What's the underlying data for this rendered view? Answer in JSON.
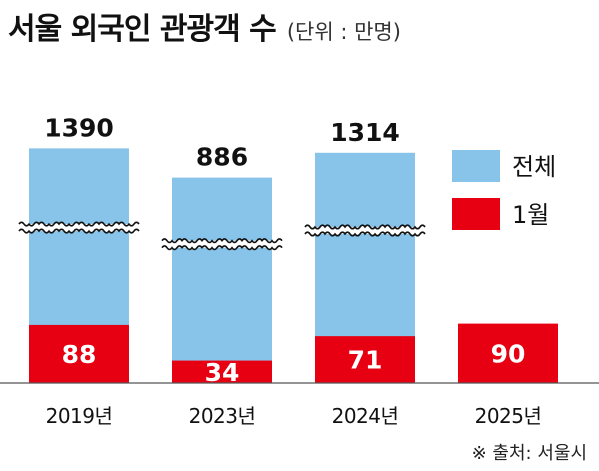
{
  "title": "서울 외국인 관광객 수",
  "unit": "(단위 : 만명)",
  "source": "※ 출처: 서울시",
  "chart_data": {
    "type": "bar",
    "categories": [
      "2019년",
      "2023년",
      "2024년",
      "2025년"
    ],
    "series": [
      {
        "name": "전체",
        "values": [
          1390,
          886,
          1314,
          null
        ],
        "color": "#88c4ea"
      },
      {
        "name": "1월",
        "values": [
          88,
          34,
          71,
          90
        ],
        "color": "#e60012"
      }
    ],
    "axis_break": true,
    "legend": "right"
  }
}
